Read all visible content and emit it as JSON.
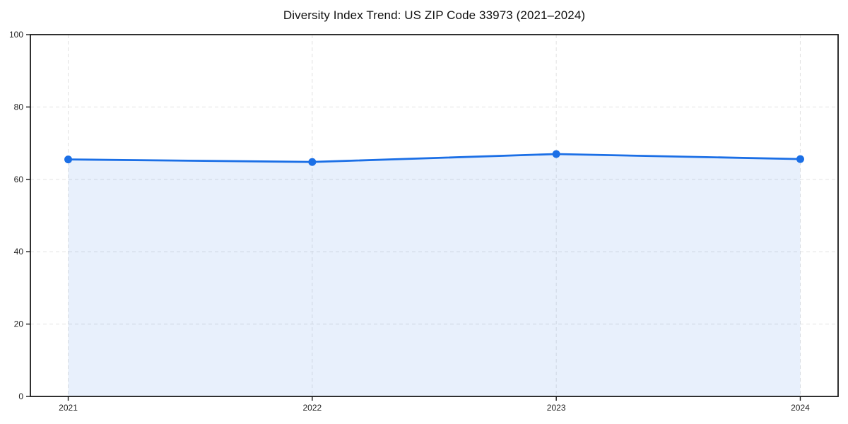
{
  "chart_data": {
    "type": "area",
    "title": "Diversity Index Trend: US ZIP Code 33973 (2021–2024)",
    "x": [
      2021,
      2022,
      2023,
      2024
    ],
    "values": [
      65.5,
      64.8,
      67.0,
      65.6
    ],
    "xlabel": "",
    "ylabel": "",
    "xticks": [
      "2021",
      "2022",
      "2023",
      "2024"
    ],
    "yticks": [
      0,
      20,
      40,
      60,
      80,
      100
    ],
    "xlim": [
      2020.845,
      2024.155
    ],
    "ylim": [
      0,
      100
    ],
    "grid": true,
    "grid_style": "dashed",
    "legend_position": "none",
    "line_color": "#1b6fe6",
    "marker_color": "#1b6fe6",
    "fill_color": "#1b6fe6",
    "fill_opacity": 0.1,
    "grid_color": "#e2e2e2",
    "frame_color": "#1a1a1a",
    "tick_label_color": "#222222",
    "title_color": "#111111",
    "background_color": "#ffffff"
  }
}
